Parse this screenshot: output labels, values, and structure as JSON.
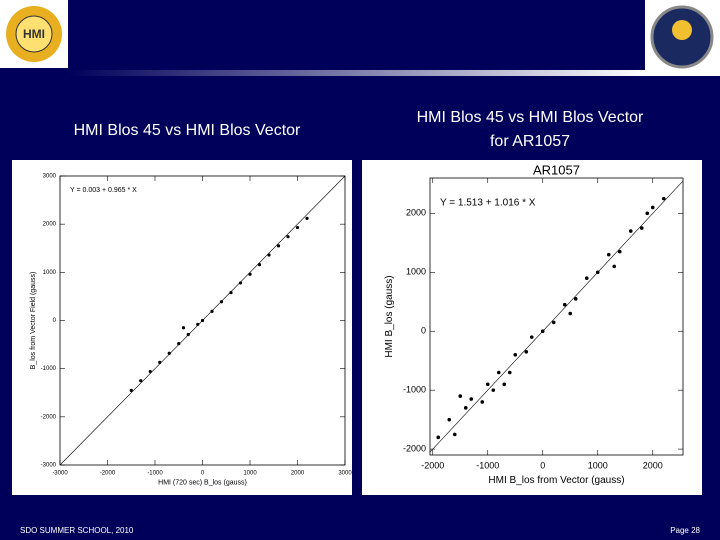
{
  "slide": {
    "logo_left": "HMI",
    "left_title": "HMI Blos 45 vs HMI Blos Vector",
    "right_title": [
      "HMI Blos 45 vs HMI Blos Vector",
      "for AR1057"
    ],
    "footer": "SDO SUMMER SCHOOL, 2010",
    "page": "Page 28"
  },
  "chart_data": [
    {
      "type": "scatter",
      "color": "#000000",
      "xlabel": "HMI (720 sec) B_los (gauss)",
      "ylabel": "B_los from Vector Field (gauss)",
      "annotation": "Y = 0.003 + 0.965 * X",
      "x": [
        -1500,
        -1300,
        -1100,
        -900,
        -700,
        -500,
        -400,
        -300,
        -100,
        0,
        200,
        400,
        600,
        800,
        1000,
        1200,
        1400,
        1600,
        1800,
        2000,
        2200
      ],
      "values": [
        -1450,
        -1250,
        -1060,
        -870,
        -680,
        -480,
        -150,
        -290,
        -80,
        0,
        190,
        390,
        580,
        780,
        960,
        1160,
        1360,
        1550,
        1740,
        1930,
        2120
      ],
      "xlim": [
        -3000,
        3000
      ],
      "ylim": [
        -3000,
        3000
      ],
      "xticks": [
        -3000,
        -2000,
        -1000,
        0,
        1000,
        2000,
        3000
      ],
      "yticks": [
        -3000,
        -2000,
        -1000,
        0,
        1000,
        2000,
        3000
      ]
    },
    {
      "type": "scatter",
      "color": "#000000",
      "title": "AR1057",
      "xlabel": "HMI B_los from Vector (gauss)",
      "ylabel": "HMI B_los (gauss)",
      "annotation": "Y = 1.513 + 1.016 * X",
      "x": [
        -1900,
        -1700,
        -1600,
        -1400,
        -1300,
        -1100,
        -1000,
        -900,
        -800,
        -600,
        -500,
        -300,
        -200,
        0,
        200,
        400,
        600,
        800,
        1000,
        1200,
        1400,
        1600,
        1800,
        2000,
        2200,
        -1500,
        -700,
        500,
        1300,
        1900
      ],
      "values": [
        -1800,
        -1500,
        -1750,
        -1300,
        -1150,
        -1200,
        -900,
        -1000,
        -700,
        -700,
        -400,
        -350,
        -100,
        0,
        150,
        450,
        550,
        900,
        1000,
        1300,
        1350,
        1700,
        1750,
        2100,
        2250,
        -1100,
        -900,
        300,
        1100,
        2000
      ],
      "xlim": [
        -2050,
        2550
      ],
      "ylim": [
        -2100,
        2600
      ],
      "xticks": [
        -2000,
        -1000,
        0,
        1000,
        2000
      ],
      "yticks": [
        -2000,
        -1000,
        0,
        1000,
        2000
      ]
    }
  ]
}
